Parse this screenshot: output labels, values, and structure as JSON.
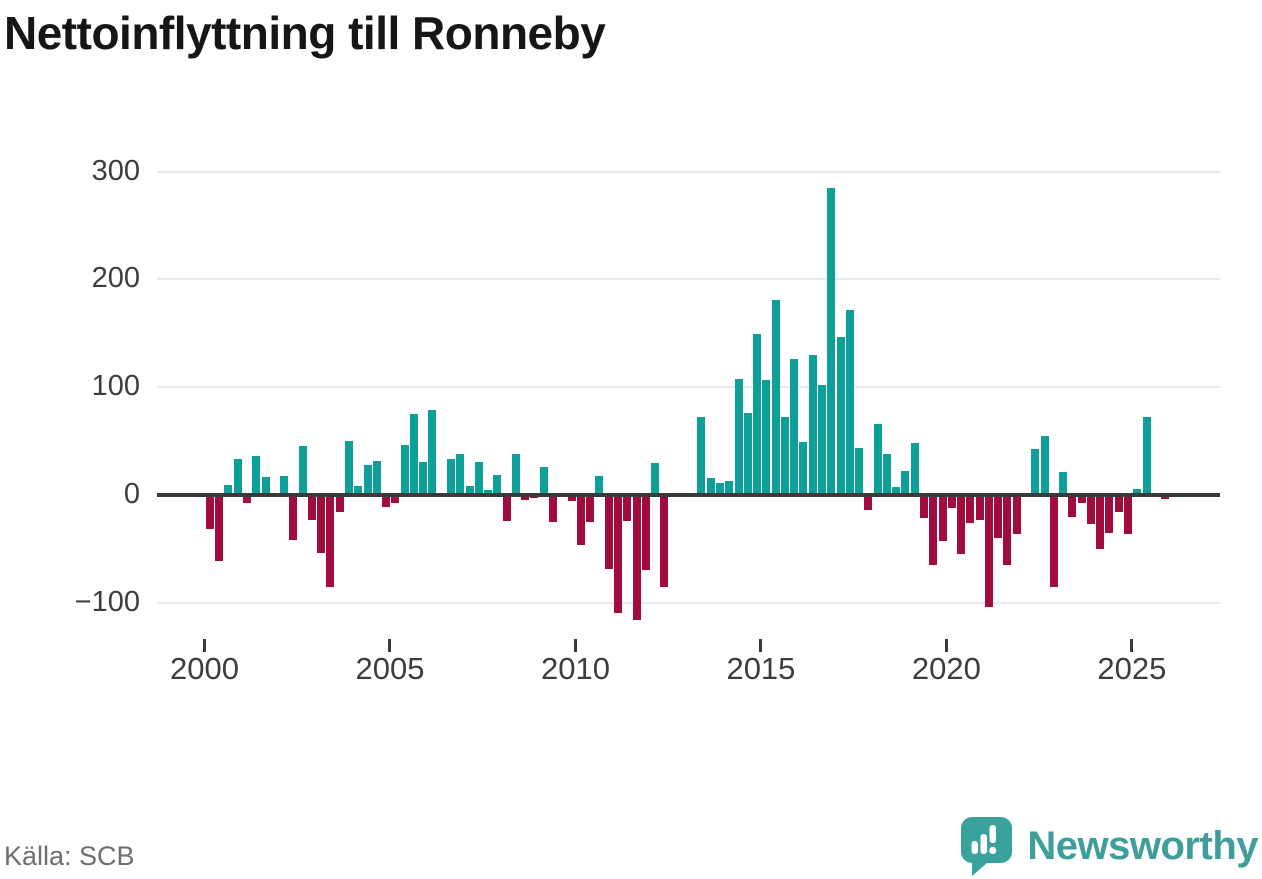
{
  "title": "Nettoinflyttning till Ronneby",
  "footer": {
    "source": "Källa: SCB",
    "brand": "Newsworthy"
  },
  "colors": {
    "positive": "#0da099",
    "negative": "#a00b40",
    "axis_text": "#3d3d3d",
    "zero_line": "#3a3a3a",
    "gridline": "#e9e9e9",
    "brand_teal": "#3f9e99"
  },
  "chart_data": {
    "type": "bar",
    "title": "Nettoinflyttning till Ronneby",
    "xlabel": "",
    "ylabel": "",
    "grid": "horizontal",
    "legend": "none",
    "ylim": [
      -130,
      310
    ],
    "y_ticks": [
      300,
      200,
      100,
      0,
      -100
    ],
    "y_tick_labels": [
      "300",
      "200",
      "100",
      "0",
      "−100"
    ],
    "x_tick_labels": [
      "2000",
      "2005",
      "2010",
      "2015",
      "2020",
      "2025"
    ],
    "x_unit": "quarter",
    "categories": [
      "2000Q1",
      "2000Q2",
      "2000Q3",
      "2000Q4",
      "2001Q1",
      "2001Q2",
      "2001Q3",
      "2001Q4",
      "2002Q1",
      "2002Q2",
      "2002Q3",
      "2002Q4",
      "2003Q1",
      "2003Q2",
      "2003Q3",
      "2003Q4",
      "2004Q1",
      "2004Q2",
      "2004Q3",
      "2004Q4",
      "2005Q1",
      "2005Q2",
      "2005Q3",
      "2005Q4",
      "2006Q1",
      "2006Q2",
      "2006Q3",
      "2006Q4",
      "2007Q1",
      "2007Q2",
      "2007Q3",
      "2007Q4",
      "2008Q1",
      "2008Q2",
      "2008Q3",
      "2008Q4",
      "2009Q1",
      "2009Q2",
      "2009Q3",
      "2009Q4",
      "2010Q1",
      "2010Q2",
      "2010Q3",
      "2010Q4",
      "2011Q1",
      "2011Q2",
      "2011Q3",
      "2011Q4",
      "2012Q1",
      "2012Q2",
      "2012Q3",
      "2012Q4",
      "2013Q1",
      "2013Q2",
      "2013Q3",
      "2013Q4",
      "2014Q1",
      "2014Q2",
      "2014Q3",
      "2014Q4",
      "2015Q1",
      "2015Q2",
      "2015Q3",
      "2015Q4",
      "2016Q1",
      "2016Q2",
      "2016Q3",
      "2016Q4",
      "2017Q1",
      "2017Q2",
      "2017Q3",
      "2017Q4",
      "2018Q1",
      "2018Q2",
      "2018Q3",
      "2018Q4",
      "2019Q1",
      "2019Q2",
      "2019Q3",
      "2019Q4",
      "2020Q1",
      "2020Q2",
      "2020Q3",
      "2020Q4",
      "2021Q1",
      "2021Q2",
      "2021Q3",
      "2021Q4",
      "2022Q1",
      "2022Q2",
      "2022Q3",
      "2022Q4",
      "2023Q1",
      "2023Q2",
      "2023Q3",
      "2023Q4",
      "2024Q1",
      "2024Q2",
      "2024Q3",
      "2024Q4",
      "2025Q1",
      "2025Q2",
      "2025Q3",
      "2025Q4"
    ],
    "values": [
      -32,
      -61,
      9,
      33,
      -7,
      36,
      17,
      0,
      18,
      -42,
      45,
      -23,
      -54,
      -85,
      -16,
      50,
      8,
      28,
      32,
      -11,
      -7,
      46,
      75,
      31,
      79,
      0,
      33,
      38,
      8,
      31,
      5,
      19,
      -24,
      38,
      -5,
      -3,
      26,
      -25,
      0,
      -6,
      -46,
      -25,
      18,
      -69,
      -109,
      -24,
      -116,
      -70,
      30,
      -85,
      0,
      0,
      0,
      72,
      16,
      11,
      13,
      108,
      76,
      149,
      107,
      181,
      72,
      126,
      49,
      130,
      102,
      285,
      147,
      172,
      44,
      -14,
      66,
      38,
      7,
      22,
      48,
      -21,
      -65,
      -43,
      -12,
      -55,
      -26,
      -23,
      -104,
      -40,
      -65,
      -36,
      0,
      43,
      55,
      -85,
      21,
      -20,
      -7,
      -27,
      -50,
      -35,
      -16,
      -36,
      6,
      72,
      0,
      -4
    ]
  }
}
